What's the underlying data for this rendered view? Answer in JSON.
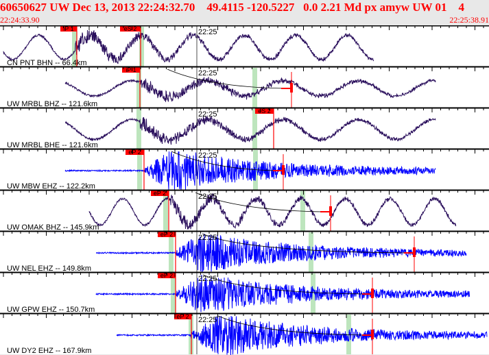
{
  "header": {
    "event_line": "60650627 UW Dec 13, 2013 22:24:32.70    49.4115 -120.5227   0.0 2.21 Md px amyw UW 01    4",
    "start_time": "22:24:33.90",
    "end_time": "22:25:38.91"
  },
  "minute_label": "22:25",
  "colors": {
    "accent": "#ff0000",
    "long_period": "#2a0f5c",
    "short_period": "#0000ff",
    "pick_window": "#bde5bd",
    "background": "#ffffff",
    "header_bg": "#e8e8e8"
  },
  "traces": [
    {
      "label": "CN PNT BHN -- 66.4km",
      "pick_labels": [
        "iP 1",
        "eS 2"
      ]
    },
    {
      "label": "UW MRBL BHZ -- 121.6km",
      "pick_labels": [
        "iP 1"
      ]
    },
    {
      "label": "UW MRBL BHE -- 121.6km",
      "pick_labels": [
        "eS 2"
      ]
    },
    {
      "label": "UW MBW EHZ -- 122.2km",
      "pick_labels": [
        "eP 2"
      ]
    },
    {
      "label": "UW OMAK BHZ -- 145.9km",
      "pick_labels": [
        "eP 2"
      ]
    },
    {
      "label": "UW NEL EHZ -- 149.8km",
      "pick_labels": [
        "eP 2"
      ]
    },
    {
      "label": "UW GPW EHZ -- 150.7km",
      "pick_labels": [
        "eP 2"
      ]
    },
    {
      "label": "UW DY2 EHZ -- 167.9km",
      "pick_labels": [
        "eP 2"
      ]
    }
  ]
}
